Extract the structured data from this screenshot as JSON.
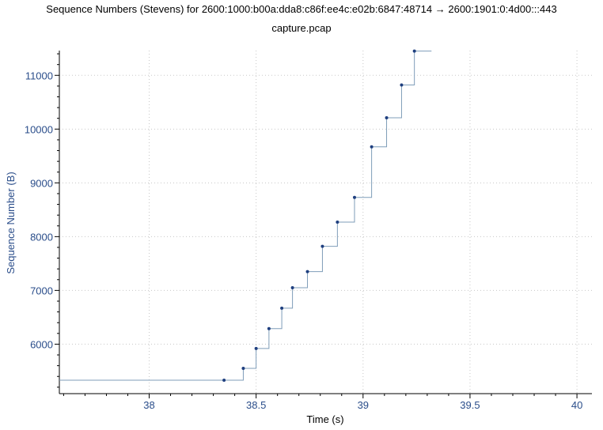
{
  "chart_data": {
    "type": "line",
    "title": "Sequence Numbers (Stevens) for 2600:1000:b00a:dda8:c86f:ee4c:e02b:6847:48714 → 2600:1901:0:4d00:::443",
    "subtitle": "capture.pcap",
    "xlabel": "Time (s)",
    "ylabel": "Sequence Number (B)",
    "xlim": [
      37.58,
      40.07
    ],
    "ylim": [
      5080,
      11460
    ],
    "x_ticks": [
      38,
      38.5,
      39,
      39.5,
      40
    ],
    "x_tick_labels": [
      "38",
      "38.5",
      "39",
      "39.5",
      "40"
    ],
    "y_ticks": [
      6000,
      7000,
      8000,
      9000,
      10000,
      11000
    ],
    "y_tick_labels": [
      "6000",
      "7000",
      "8000",
      "9000",
      "10000",
      "11000"
    ],
    "grid": true,
    "step_style": "stevens",
    "series": [
      {
        "x": [
          38.35,
          38.44,
          38.5,
          38.56,
          38.62,
          38.67,
          38.74,
          38.81,
          38.88,
          38.96,
          39.04,
          39.11,
          39.18,
          39.24
        ],
        "y": [
          5330,
          5550,
          5920,
          6290,
          6670,
          7050,
          7350,
          7820,
          8270,
          8730,
          9670,
          10210,
          10820,
          11450
        ]
      }
    ],
    "line_end_x": 39.32,
    "colors": {
      "line": "#7f9db9",
      "marker": "#1f3f7f",
      "axis_text": "#2a4d8a",
      "grid": "#c8c8c8"
    }
  }
}
